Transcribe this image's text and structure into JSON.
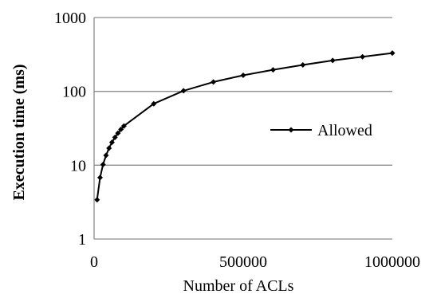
{
  "chart_data": {
    "type": "line",
    "title": "",
    "xlabel": "Number of ACLs",
    "ylabel": "Execution time (ms)",
    "x_scale": "linear",
    "y_scale": "log",
    "xlim": [
      0,
      1000000
    ],
    "ylim": [
      1,
      1000
    ],
    "x_ticks": [
      0,
      500000,
      1000000
    ],
    "x_tick_labels": [
      "0",
      "500000",
      "1000000"
    ],
    "y_ticks": [
      1,
      10,
      100,
      1000
    ],
    "y_tick_labels": [
      "1",
      "10",
      "100",
      "1000"
    ],
    "grid": "horizontal",
    "legend_position": "right",
    "series": [
      {
        "name": "Allowed",
        "color": "#000000",
        "marker": "diamond",
        "x": [
          10000,
          20000,
          30000,
          40000,
          50000,
          60000,
          70000,
          80000,
          90000,
          100000,
          200000,
          300000,
          400000,
          500000,
          600000,
          700000,
          800000,
          900000,
          1000000
        ],
        "y": [
          3.4,
          6.8,
          10.2,
          13.6,
          17,
          20.4,
          23.8,
          27.2,
          30.6,
          34,
          68,
          102,
          134,
          165,
          196,
          228,
          262,
          294,
          330
        ]
      }
    ]
  }
}
